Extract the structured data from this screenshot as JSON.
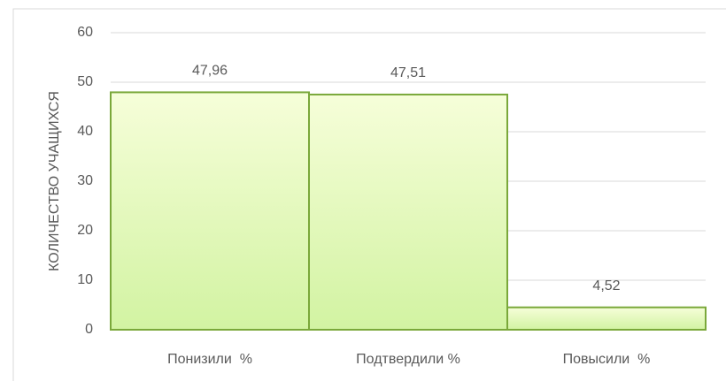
{
  "chart_data": {
    "type": "bar",
    "y_label": "КОЛИЧЕСТВО УЧАЩИХСЯ",
    "categories": [
      "Понизили  %",
      "Подтвердили %",
      "Повысили  %"
    ],
    "values": [
      47.96,
      47.51,
      4.52
    ],
    "value_labels": [
      "47,96",
      "47,51",
      "4,52"
    ],
    "color": "#7aa83a",
    "ylim": [
      0,
      60
    ],
    "yticks": [
      0,
      10,
      20,
      30,
      40,
      50,
      60
    ],
    "grid": true
  }
}
